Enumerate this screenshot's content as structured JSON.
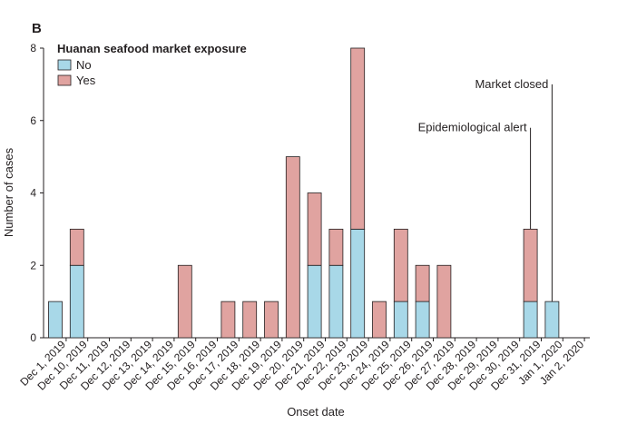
{
  "chart_data": {
    "type": "bar",
    "stacked": true,
    "panel_label": "B",
    "xlabel": "Onset date",
    "ylabel": "Number of cases",
    "ylim": [
      0,
      8
    ],
    "yticks": [
      0,
      2,
      4,
      6,
      8
    ],
    "legend": {
      "title": "Huanan seafood market exposure",
      "placement": "top-left"
    },
    "categories": [
      "Dec 1, 2019",
      "Dec 10, 2019",
      "Dec 11, 2019",
      "Dec 12, 2019",
      "Dec 13, 2019",
      "Dec 14, 2019",
      "Dec 15, 2019",
      "Dec 16, 2019",
      "Dec 17, 2019",
      "Dec 18, 2019",
      "Dec 19, 2019",
      "Dec 20, 2019",
      "Dec 21, 2019",
      "Dec 22, 2019",
      "Dec 23, 2019",
      "Dec 24, 2019",
      "Dec 25, 2019",
      "Dec 26, 2019",
      "Dec 27, 2019",
      "Dec 28, 2019",
      "Dec 29, 2019",
      "Dec 30, 2019",
      "Dec 31, 2019",
      "Jan 1, 2020",
      "Jan 2, 2020"
    ],
    "series": [
      {
        "name": "No",
        "color": "#a8d8e8",
        "values": [
          1,
          2,
          0,
          0,
          0,
          0,
          0,
          0,
          0,
          0,
          0,
          0,
          2,
          2,
          3,
          0,
          1,
          1,
          0,
          0,
          0,
          0,
          1,
          1,
          0
        ]
      },
      {
        "name": "Yes",
        "color": "#e0a3a0",
        "values": [
          0,
          1,
          0,
          0,
          0,
          0,
          2,
          0,
          1,
          1,
          1,
          5,
          2,
          1,
          5,
          1,
          2,
          1,
          2,
          0,
          0,
          0,
          2,
          0,
          0
        ]
      }
    ],
    "annotations": [
      {
        "text": "Epidemiological alert",
        "category": "Dec 31, 2019",
        "top": 5.8
      },
      {
        "text": "Market closed",
        "category": "Jan 1, 2020",
        "top": 7.0
      }
    ]
  }
}
